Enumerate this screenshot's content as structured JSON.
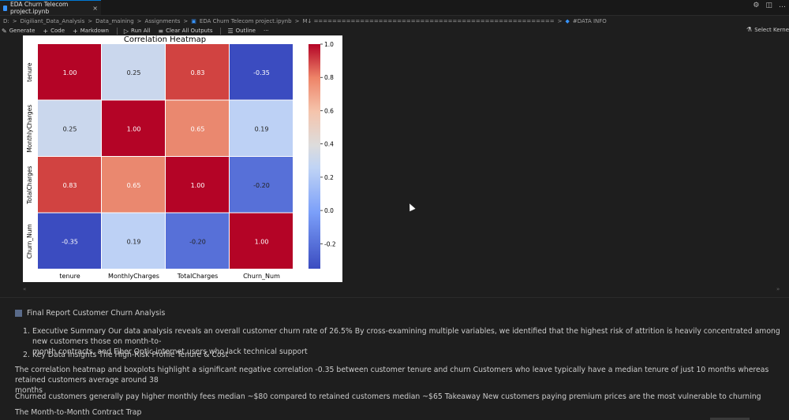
{
  "tab": {
    "title": "EDA Churn Telecom project.ipynb",
    "close": "×"
  },
  "titlebar_icons": [
    "gear-icon",
    "split-editor-icon",
    "more-icon"
  ],
  "breadcrumb": [
    "D:",
    ">",
    "Digiliant_Data_Analysis",
    ">",
    "Data_maining",
    ">",
    "Assignments",
    ">",
    "EDA Churn Telecom project.ipynb",
    ">",
    "M↓ ====================================================",
    ">",
    "#DATA INFO"
  ],
  "toolbar": {
    "generate": "Generate",
    "code": "Code",
    "markdown": "Markdown",
    "run_all": "Run All",
    "clear_outputs": "Clear All Outputs",
    "outline": "Outline",
    "more": "···",
    "kernel": "Select Kernel"
  },
  "chart_data": {
    "type": "heatmap",
    "title": "Correlation Heatmap",
    "rows": [
      "tenure",
      "MonthlyCharges",
      "TotalCharges",
      "Churn_Num"
    ],
    "columns": [
      "tenure",
      "MonthlyCharges",
      "TotalCharges",
      "Churn_Num"
    ],
    "values": [
      [
        1.0,
        0.25,
        0.83,
        -0.35
      ],
      [
        0.25,
        1.0,
        0.65,
        0.19
      ],
      [
        0.83,
        0.65,
        1.0,
        -0.2
      ],
      [
        -0.35,
        0.19,
        -0.2,
        1.0
      ]
    ],
    "colormap": "coolwarm",
    "colorbar_ticks": [
      "1.0",
      "0.8",
      "0.6",
      "0.4",
      "0.2",
      "0.0",
      "-0.2"
    ],
    "vmin": -0.35,
    "vmax": 1.0
  },
  "report": {
    "title": "Final Report Customer Churn Analysis",
    "item1_num": "1.",
    "item1_line1": "Executive Summary Our data analysis reveals an overall customer churn rate of 26.5% By cross-examining multiple variables, we identified that the highest risk of attrition is heavily concentrated among new customers those on month-to-",
    "item1_line2": "month contracts, and Fiber Optic internet users who lack technical support",
    "item2_num": "2.",
    "item2_text": "Key Data Insights The High-Risk Profile Tenure & Cost",
    "para1_line1": "The correlation heatmap and boxplots highlight a significant negative correlation -0.35 between customer tenure and churn Customers who leave typically have a median tenure of just 10 months whereas retained customers average around 38",
    "para1_line2": "months",
    "para2": "Churned customers generally pay higher monthly fees median ~$80 compared to retained customers median ~$65 Takeaway New customers paying premium prices are the most vulnerable to churning",
    "para3": "The Month-to-Month Contract Trap"
  }
}
